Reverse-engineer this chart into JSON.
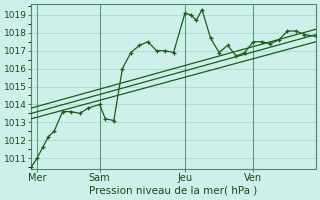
{
  "title": "",
  "xlabel": "Pression niveau de la mer( hPa )",
  "ylabel": "",
  "bg_color": "#cff0ea",
  "grid_color": "#aaddcc",
  "line_color": "#1a5c1a",
  "xlim": [
    0,
    100
  ],
  "ylim": [
    1010.4,
    1019.6
  ],
  "yticks": [
    1011,
    1012,
    1013,
    1014,
    1015,
    1016,
    1017,
    1018,
    1019
  ],
  "xtick_positions": [
    2,
    24,
    54,
    78
  ],
  "xtick_labels": [
    "Mer",
    "Sam",
    "Jeu",
    "Ven"
  ],
  "vline_positions": [
    2,
    24,
    54,
    78
  ],
  "series1_x": [
    0,
    2,
    4,
    6,
    8,
    11,
    14,
    17,
    20,
    24,
    26,
    29,
    32,
    35,
    38,
    41,
    44,
    47,
    50,
    54,
    56,
    58,
    60,
    63,
    66,
    69,
    72,
    75,
    78,
    81,
    84,
    87,
    90,
    93,
    96,
    100
  ],
  "series1_y": [
    1010.5,
    1011.0,
    1011.6,
    1012.2,
    1012.5,
    1013.6,
    1013.6,
    1013.5,
    1013.8,
    1014.0,
    1013.2,
    1013.1,
    1016.0,
    1016.9,
    1017.3,
    1017.5,
    1017.0,
    1017.0,
    1016.9,
    1019.1,
    1019.0,
    1018.7,
    1019.3,
    1017.7,
    1016.9,
    1017.3,
    1016.7,
    1016.9,
    1017.5,
    1017.5,
    1017.4,
    1017.6,
    1018.1,
    1018.1,
    1017.9,
    1017.8
  ],
  "series2_x": [
    0,
    100
  ],
  "series2_y": [
    1013.8,
    1018.2
  ],
  "series3_x": [
    0,
    100
  ],
  "series3_y": [
    1013.5,
    1017.9
  ],
  "series4_x": [
    0,
    100
  ],
  "series4_y": [
    1013.2,
    1017.5
  ]
}
